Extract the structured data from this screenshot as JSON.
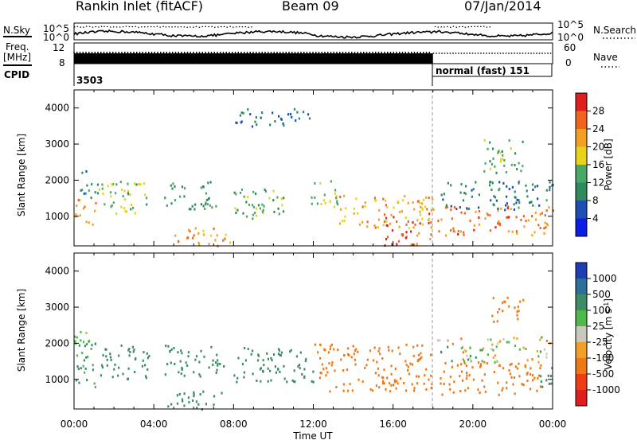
{
  "header": {
    "title": "Rankin Inlet (fitACF)",
    "beam": "Beam 09",
    "date": "07/Jan/2014"
  },
  "top_panels": {
    "nsky_label": "N.Sky",
    "nsearch_label": "N.Search",
    "noise_ticks": [
      "10^5",
      "10^0"
    ],
    "freq_label_1": "Freq.",
    "freq_label_2": "[MHz]",
    "freq_ticks": [
      "12",
      "8"
    ],
    "nave_label": "Nave",
    "nave_ticks": [
      "60",
      "0"
    ],
    "cpid_label": "CPID",
    "cpid_segments": [
      {
        "label": "3503",
        "start_hour": 0,
        "end_hour": 18
      },
      {
        "label": "normal (fast) 151",
        "start_hour": 18,
        "end_hour": 24
      }
    ]
  },
  "chart_data": [
    {
      "type": "heatmap",
      "title": "",
      "xlabel": "",
      "ylabel": "Slant Range [km]",
      "xlim": [
        0,
        24
      ],
      "ylim": [
        180,
        4500
      ],
      "yticks": [
        "1000",
        "2000",
        "3000",
        "4000"
      ],
      "colorbar": {
        "label": "Power [dB]",
        "ticks": [
          "4",
          "8",
          "12",
          "16",
          "20",
          "24",
          "28"
        ],
        "colors": [
          "#0a1ee6",
          "#1e4eb4",
          "#2c8a5c",
          "#49a867",
          "#e8d21a",
          "#f2a021",
          "#f0641e",
          "#e11e1e"
        ]
      },
      "scatter_regions": [
        {
          "t_start": 0.0,
          "t_end": 1.1,
          "r_low": 800,
          "r_high": 1500,
          "value": 24
        },
        {
          "t_start": 0.2,
          "t_end": 1.2,
          "r_low": 1500,
          "r_high": 2300,
          "value": 10
        },
        {
          "t_start": 1.2,
          "t_end": 3.7,
          "r_low": 1000,
          "r_high": 2000,
          "value": 15
        },
        {
          "t_start": 4.5,
          "t_end": 7.2,
          "r_low": 1200,
          "r_high": 2000,
          "value": 12
        },
        {
          "t_start": 5.0,
          "t_end": 8.0,
          "r_low": 200,
          "r_high": 700,
          "value": 22
        },
        {
          "t_start": 8.0,
          "t_end": 10.5,
          "r_low": 900,
          "r_high": 1900,
          "value": 14
        },
        {
          "t_start": 11.8,
          "t_end": 13.2,
          "r_low": 1100,
          "r_high": 2000,
          "value": 16
        },
        {
          "t_start": 13.2,
          "t_end": 18.0,
          "r_low": 700,
          "r_high": 1600,
          "value": 21
        },
        {
          "t_start": 15.5,
          "t_end": 18.0,
          "r_low": 200,
          "r_high": 1100,
          "value": 27
        },
        {
          "t_start": 18.2,
          "t_end": 24.0,
          "r_low": 500,
          "r_high": 1300,
          "value": 25
        },
        {
          "t_start": 18.2,
          "t_end": 24.0,
          "r_low": 1200,
          "r_high": 2000,
          "value": 9
        },
        {
          "t_start": 20.5,
          "t_end": 22.5,
          "r_low": 2200,
          "r_high": 3200,
          "value": 13
        },
        {
          "t_start": 8.0,
          "t_end": 12.0,
          "r_low": 3500,
          "r_high": 4000,
          "value": 8
        }
      ]
    },
    {
      "type": "heatmap",
      "title": "",
      "xlabel": "Time UT",
      "ylabel": "Slant Range [km]",
      "xlim": [
        0,
        24
      ],
      "ylim": [
        180,
        4500
      ],
      "xticks": [
        "00:00",
        "04:00",
        "08:00",
        "12:00",
        "16:00",
        "20:00",
        "00:00"
      ],
      "yticks": [
        "1000",
        "2000",
        "3000",
        "4000"
      ],
      "colorbar": {
        "label": "Velocity [m s-1]",
        "ticks": [
          "1000",
          "500",
          "100",
          "25",
          "-25",
          "-100",
          "-500",
          "-1000"
        ],
        "colors": [
          "#1e3cb4",
          "#2c6e9c",
          "#3c8c64",
          "#4fb84a",
          "#c8c8bc",
          "#f0a028",
          "#f07814",
          "#f03c14",
          "#e11e1e"
        ]
      },
      "scatter_regions": [
        {
          "t_start": 0.0,
          "t_end": 1.2,
          "r_low": 800,
          "r_high": 2200,
          "value": 150
        },
        {
          "t_start": 1.2,
          "t_end": 3.8,
          "r_low": 1000,
          "r_high": 2000,
          "value": 300
        },
        {
          "t_start": 4.5,
          "t_end": 7.5,
          "r_low": 1100,
          "r_high": 2000,
          "value": 300
        },
        {
          "t_start": 4.5,
          "t_end": 7.5,
          "r_low": 200,
          "r_high": 700,
          "value": 300
        },
        {
          "t_start": 8.0,
          "t_end": 12.0,
          "r_low": 900,
          "r_high": 1900,
          "value": 300
        },
        {
          "t_start": 12.0,
          "t_end": 18.0,
          "r_low": 700,
          "r_high": 2000,
          "value": -300
        },
        {
          "t_start": 18.2,
          "t_end": 23.5,
          "r_low": 600,
          "r_high": 1500,
          "value": -300
        },
        {
          "t_start": 18.2,
          "t_end": 24.0,
          "r_low": 1500,
          "r_high": 2200,
          "value": 0
        },
        {
          "t_start": 23.2,
          "t_end": 24.0,
          "r_low": 700,
          "r_high": 1400,
          "value": 300
        },
        {
          "t_start": 20.8,
          "t_end": 22.5,
          "r_low": 2600,
          "r_high": 3300,
          "value": -300
        },
        {
          "t_start": 0.0,
          "t_end": 1.0,
          "r_low": 2000,
          "r_high": 2400,
          "value": 0
        }
      ]
    }
  ]
}
